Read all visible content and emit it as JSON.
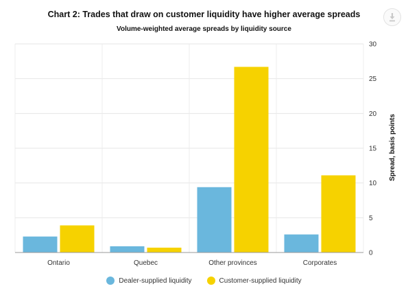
{
  "chart_data": {
    "type": "bar",
    "title": "Chart 2: Trades that draw on customer liquidity have higher average spreads",
    "subtitle": "Volume-weighted average spreads by liquidity source",
    "categories": [
      "Ontario",
      "Quebec",
      "Other provinces",
      "Corporates"
    ],
    "series": [
      {
        "name": "Dealer-supplied liquidity",
        "values": [
          2.3,
          0.9,
          9.4,
          2.6
        ],
        "color": "#6ab7dd"
      },
      {
        "name": "Customer-supplied liquidity",
        "values": [
          3.9,
          0.7,
          26.7,
          11.1
        ],
        "color": "#f6d200"
      }
    ],
    "ylabel": "Spread, basis points",
    "ylim": [
      0,
      30
    ],
    "yticks": [
      0,
      5,
      10,
      15,
      20,
      25,
      30
    ],
    "y_axis_side": "right",
    "grid": true,
    "legend_position": "bottom-center"
  },
  "toolbar": {
    "download_icon": "download-icon"
  }
}
